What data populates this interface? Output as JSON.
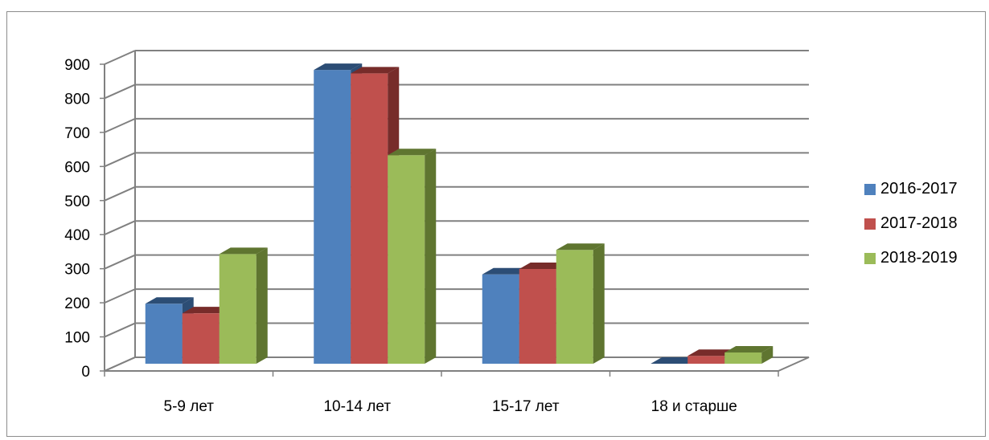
{
  "chart_data": {
    "type": "bar",
    "title": "",
    "xlabel": "",
    "ylabel": "",
    "categories": [
      "5-9 лет",
      "10-14 лет",
      "15-17 лет",
      "18 и старше"
    ],
    "series": [
      {
        "name": "2016-2017",
        "values": [
          176,
          862,
          262,
          0
        ]
      },
      {
        "name": "2017-2018",
        "values": [
          148,
          852,
          278,
          23
        ]
      },
      {
        "name": "2018-2019",
        "values": [
          322,
          612,
          334,
          33
        ]
      }
    ],
    "ylim": [
      0,
      900
    ],
    "yticks": [
      "0",
      "100",
      "200",
      "300",
      "400",
      "500",
      "600",
      "700",
      "800",
      "900"
    ],
    "grid": true,
    "legend_position": "right",
    "style": "3d-clustered-column",
    "colors": {
      "series": [
        "#4f81bd",
        "#c0504d",
        "#9bbb59"
      ],
      "series_dark": [
        "#2c4d75",
        "#772c2a",
        "#5f7530"
      ],
      "gridline": "#808080"
    }
  }
}
